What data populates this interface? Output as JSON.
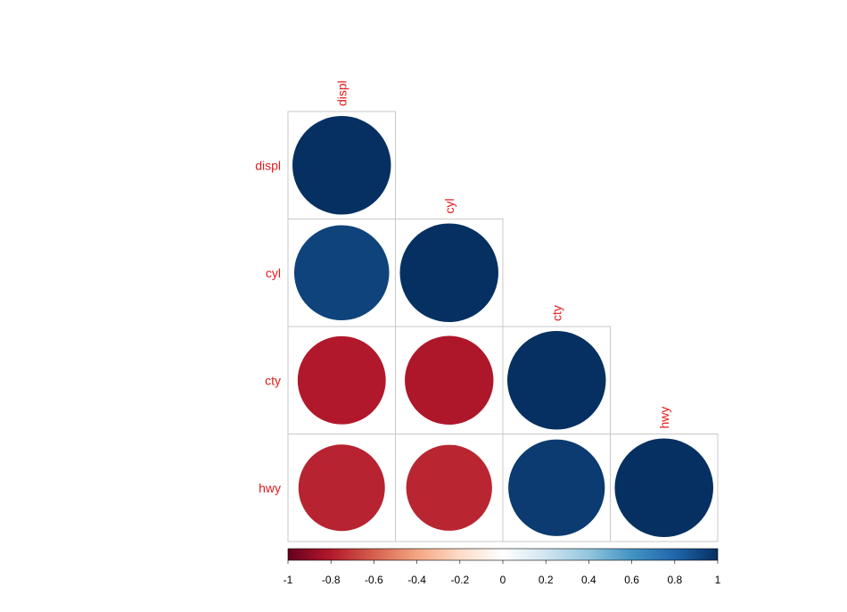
{
  "chart_data": {
    "type": "heatmap",
    "style": "correlation-matrix-lower-circles",
    "variables": [
      "displ",
      "cyl",
      "cty",
      "hwy"
    ],
    "matrix": [
      [
        1.0,
        0.93,
        -0.8,
        -0.77
      ],
      [
        0.93,
        1.0,
        -0.81,
        -0.76
      ],
      [
        -0.8,
        -0.81,
        1.0,
        0.96
      ],
      [
        -0.77,
        -0.76,
        0.96,
        1.0
      ]
    ],
    "colorbar": {
      "range": [
        -1,
        1
      ],
      "ticks": [
        "-1",
        "-0.8",
        "-0.6",
        "-0.4",
        "-0.2",
        "0",
        "0.2",
        "0.4",
        "0.6",
        "0.8",
        "1"
      ],
      "colors": [
        "#67001F",
        "#B2182B",
        "#D6604D",
        "#F4A582",
        "#FDDBC7",
        "#FFFFFF",
        "#D1E5F0",
        "#92C5DE",
        "#4393C3",
        "#2166AC",
        "#053061"
      ]
    },
    "label_color": "#e41a1c",
    "grid_color": "#c8c8c8"
  }
}
